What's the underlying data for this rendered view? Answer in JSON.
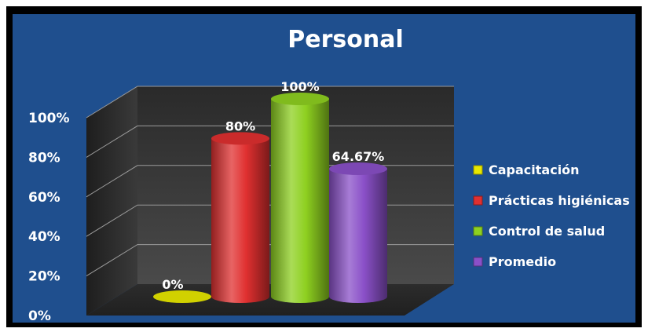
{
  "chart_data": {
    "type": "bar",
    "title": "Personal",
    "categories": [
      "Capacitación",
      "Prácticas higiénicas",
      "Control de salud",
      "Promedio"
    ],
    "values": [
      0,
      80,
      100,
      64.67
    ],
    "data_labels": [
      "0%",
      "80%",
      "100%",
      "64.67%"
    ],
    "y_tick_labels": [
      "0%",
      "20%",
      "40%",
      "60%",
      "80%",
      "100%"
    ],
    "ylim": [
      0,
      100
    ],
    "grid": true,
    "legend_position": "right",
    "colors": [
      "#e8e800",
      "#e03030",
      "#8ed020",
      "#8a50c8"
    ],
    "background_color": "#1f4f8e",
    "wall_color": "#3a3a3a",
    "style": "3d-cylinder"
  }
}
